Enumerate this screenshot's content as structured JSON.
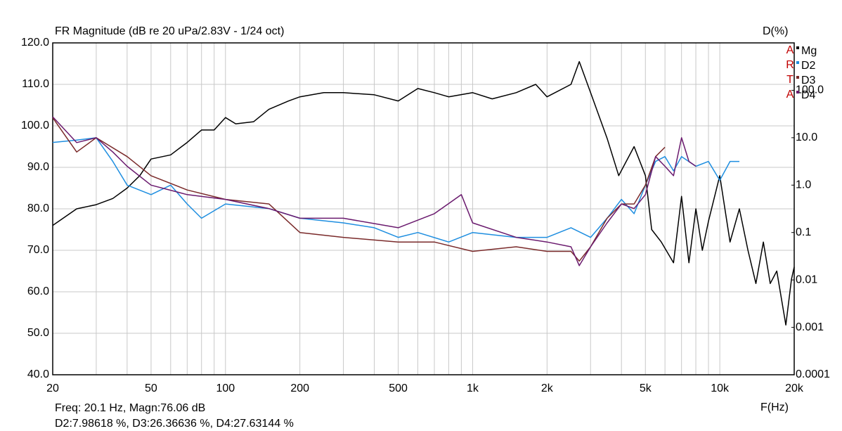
{
  "chart_data": {
    "type": "line",
    "title": "FR Magnitude (dB re 20 uPa/2.83V - 1/24 oct)",
    "y2_label": "D(%)",
    "x_label": "F(Hz)",
    "watermark": [
      "A",
      "R",
      "T",
      "A"
    ],
    "cursor_readout": [
      "Freq: 20.1 Hz, Magn:76.06 dB",
      "D2:7.98618 %, D3:26.36636 %, D4:27.63144 %"
    ],
    "x_log": true,
    "y2_log": true,
    "grid": true,
    "xlim": [
      20,
      20000
    ],
    "xticks": [
      20,
      50,
      100,
      200,
      500,
      {
        "value": 1000,
        "label": "1k"
      },
      {
        "value": 2000,
        "label": "2k"
      },
      {
        "value": 5000,
        "label": "5k"
      },
      {
        "value": 10000,
        "label": "10k"
      },
      {
        "value": 20000,
        "label": "20k"
      }
    ],
    "xminor_ticks": [
      30,
      40,
      60,
      70,
      80,
      90,
      300,
      400,
      600,
      700,
      800,
      900,
      3000,
      4000,
      6000,
      7000,
      8000,
      9000
    ],
    "ylim": [
      40,
      120
    ],
    "yticks": [
      {
        "value": 40,
        "label": "40.0"
      },
      {
        "value": 50,
        "label": "50.0"
      },
      {
        "value": 60,
        "label": "60.0"
      },
      {
        "value": 70,
        "label": "70.0"
      },
      {
        "value": 80,
        "label": "80.0"
      },
      {
        "value": 90,
        "label": "90.0"
      },
      {
        "value": 100,
        "label": "100.0"
      },
      {
        "value": 110,
        "label": "110.0"
      },
      {
        "value": 120,
        "label": "120.0"
      }
    ],
    "y2lim": [
      0.0001,
      1000
    ],
    "y2ticks": [
      0.0001,
      0.001,
      0.01,
      0.1,
      {
        "value": 1,
        "label": "1.0"
      },
      {
        "value": 10,
        "label": "10.0"
      },
      {
        "value": 100,
        "label": "100.0"
      }
    ],
    "series": [
      {
        "name": "Mg",
        "color": "#000000",
        "x": [
          20,
          25,
          30,
          35,
          40,
          45,
          50,
          60,
          70,
          80,
          90,
          100,
          110,
          130,
          150,
          180,
          200,
          250,
          300,
          400,
          500,
          600,
          700,
          800,
          1000,
          1200,
          1500,
          1800,
          2000,
          2500,
          2700,
          3000,
          3500,
          3900,
          4500,
          5000,
          5300,
          5800,
          6500,
          7000,
          7500,
          8000,
          8500,
          9000,
          10000,
          11000,
          12000,
          13000,
          14000,
          15000,
          16000,
          17000,
          18500,
          19500,
          20000
        ],
        "values": [
          76,
          80,
          81,
          82.5,
          85,
          88,
          92,
          93,
          96,
          99,
          99,
          102,
          100.5,
          101,
          104,
          106,
          107,
          108,
          108,
          107.5,
          106,
          109,
          108,
          107,
          108,
          106.5,
          108,
          110,
          107,
          110,
          115.5,
          108,
          97,
          88,
          95,
          88,
          75,
          72,
          67,
          83,
          67,
          80,
          70,
          77,
          88,
          72,
          80,
          70,
          62,
          72,
          62,
          65,
          52,
          63,
          66
        ]
      },
      {
        "name": "D2",
        "color": "#1e8ee0",
        "axis": "y2",
        "x": [
          20,
          25,
          30,
          35,
          40,
          50,
          60,
          70,
          80,
          100,
          150,
          200,
          300,
          400,
          500,
          600,
          800,
          1000,
          1500,
          2000,
          2500,
          3000,
          3500,
          4000,
          4500,
          5000,
          5500,
          6000,
          6500,
          7000,
          8000,
          9000,
          10000,
          11000,
          12000
        ],
        "values": [
          7.94,
          8.9,
          10,
          3.16,
          1.0,
          0.63,
          1.0,
          0.4,
          0.2,
          0.4,
          0.32,
          0.2,
          0.16,
          0.126,
          0.079,
          0.1,
          0.063,
          0.1,
          0.079,
          0.079,
          0.126,
          0.079,
          0.2,
          0.5,
          0.25,
          1.0,
          3.16,
          4.0,
          2.0,
          4.0,
          2.5,
          3.16,
          1.26,
          3.16,
          3.16
        ]
      },
      {
        "name": "D3",
        "color": "#7a2a2a",
        "axis": "y2",
        "x": [
          20,
          25,
          30,
          40,
          50,
          70,
          100,
          150,
          200,
          300,
          500,
          700,
          1000,
          1500,
          2000,
          2500,
          2700,
          3000,
          3500,
          4000,
          4500,
          5000,
          5500,
          6000
        ],
        "values": [
          26.4,
          5.0,
          10,
          4.0,
          1.58,
          0.79,
          0.5,
          0.4,
          0.1,
          0.079,
          0.063,
          0.063,
          0.04,
          0.05,
          0.04,
          0.04,
          0.025,
          0.05,
          0.2,
          0.4,
          0.4,
          1.0,
          4.0,
          6.3
        ]
      },
      {
        "name": "D4",
        "color": "#6a1a6e",
        "axis": "y2",
        "x": [
          20,
          25,
          30,
          35,
          40,
          50,
          70,
          100,
          150,
          200,
          300,
          500,
          700,
          900,
          1000,
          1500,
          2000,
          2500,
          2700,
          3000,
          3500,
          4000,
          4500,
          5000,
          5500,
          6000,
          6500,
          7000,
          7500,
          8000
        ],
        "values": [
          27.6,
          7.9,
          10,
          5.0,
          2.5,
          1.0,
          0.63,
          0.5,
          0.32,
          0.2,
          0.2,
          0.126,
          0.25,
          0.63,
          0.16,
          0.079,
          0.063,
          0.05,
          0.02,
          0.05,
          0.16,
          0.4,
          0.32,
          0.63,
          4.0,
          2.5,
          1.58,
          10,
          3.16,
          2.5
        ]
      }
    ]
  }
}
